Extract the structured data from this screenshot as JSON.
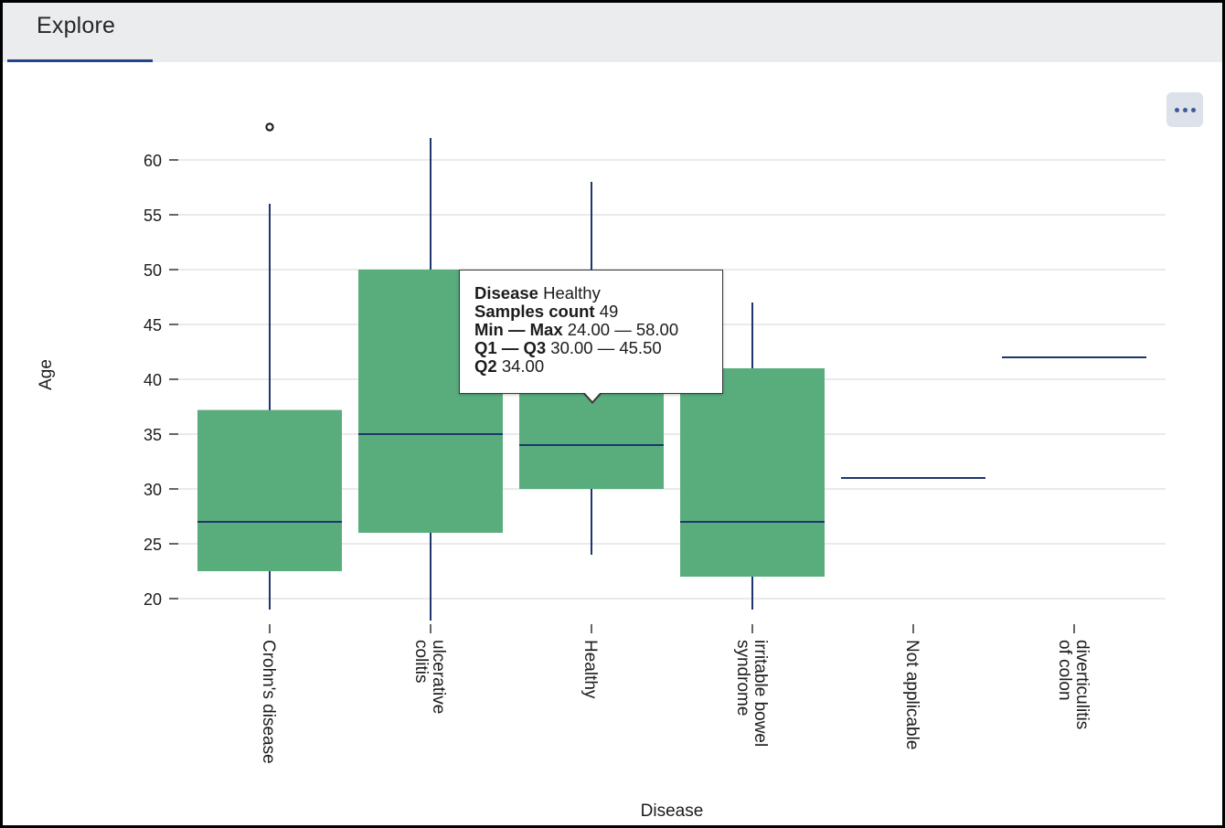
{
  "tabs": [
    {
      "label": "Explore",
      "active": true
    }
  ],
  "more_button": {
    "icon": "more-horizontal-icon"
  },
  "colors": {
    "box_fill": "#59ad7d",
    "median_line": "#1f356e",
    "grid": "#e4e4e4",
    "tab_underline": "#24438c"
  },
  "chart_data": {
    "type": "boxplot",
    "xlabel": "Disease",
    "ylabel": "Age",
    "ylim": [
      18,
      64
    ],
    "yticks": [
      20,
      25,
      30,
      35,
      40,
      45,
      50,
      55,
      60
    ],
    "grid": true,
    "categories": [
      "Crohn's disease",
      "ulcerative colitis",
      "Healthy",
      "irritable bowel syndrome",
      "Not applicable",
      "diverticulitis of colon"
    ],
    "boxes": [
      {
        "category": "Crohn's disease",
        "min": 19,
        "q1": 22.5,
        "median": 27,
        "q3": 37.2,
        "max": 56,
        "outliers": [
          63
        ]
      },
      {
        "category": "ulcerative colitis",
        "min": 18,
        "q1": 26,
        "median": 35,
        "q3": 50,
        "max": 62,
        "outliers": []
      },
      {
        "category": "Healthy",
        "min": 24,
        "q1": 30,
        "median": 34,
        "q3": 45.5,
        "max": 58,
        "outliers": []
      },
      {
        "category": "irritable bowel syndrome",
        "min": 19,
        "q1": 22,
        "median": 27,
        "q3": 41,
        "max": 47,
        "outliers": []
      },
      {
        "category": "Not applicable",
        "min": 31,
        "q1": 31,
        "median": 31,
        "q3": 31,
        "max": 31,
        "outliers": []
      },
      {
        "category": "diverticulitis of colon",
        "min": 42,
        "q1": 42,
        "median": 42,
        "q3": 42,
        "max": 42,
        "outliers": []
      }
    ]
  },
  "tooltip": {
    "disease_label": "Disease",
    "disease_value": "Healthy",
    "samples_label": "Samples count",
    "samples_value": "49",
    "minmax_label": "Min — Max",
    "minmax_value": "24.00 — 58.00",
    "q1q3_label": "Q1 — Q3",
    "q1q3_value": "30.00 — 45.50",
    "q2_label": "Q2",
    "q2_value": "34.00"
  }
}
